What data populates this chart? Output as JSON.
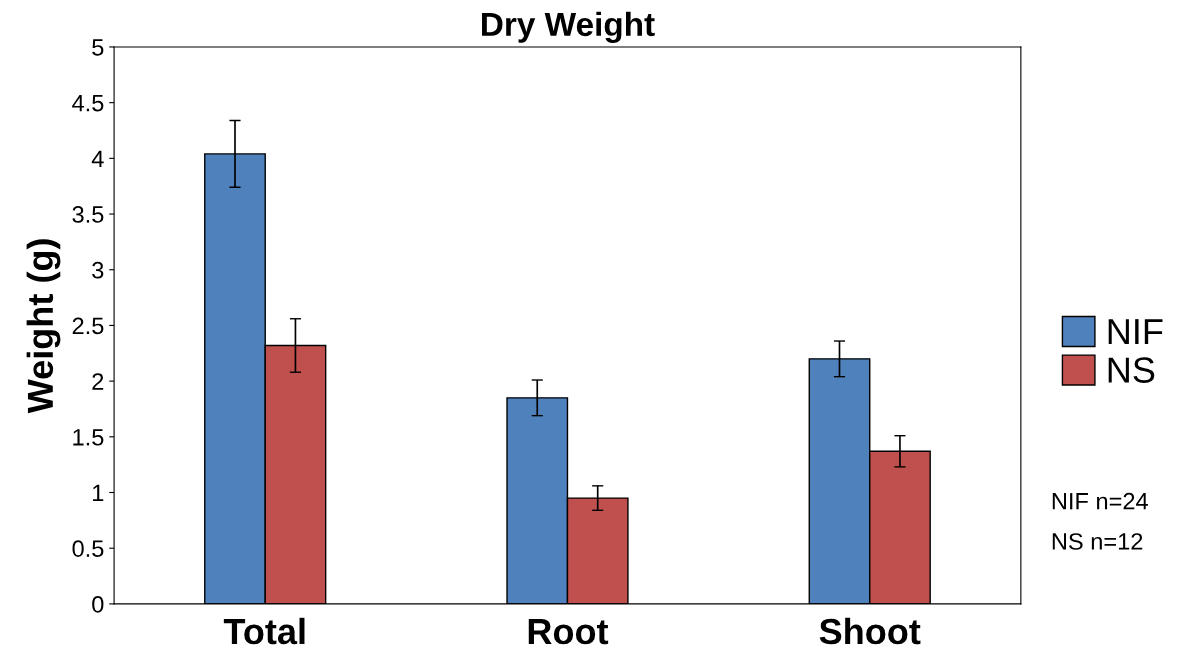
{
  "chart_data": {
    "type": "bar",
    "title": "Dry Weight",
    "ylabel": "Weight (g)",
    "categories": [
      "Total",
      "Root",
      "Shoot"
    ],
    "series": [
      {
        "name": "NIF",
        "color": "#4f81bd",
        "values": [
          4.04,
          1.85,
          2.2
        ],
        "errors": [
          0.3,
          0.16,
          0.16
        ]
      },
      {
        "name": "NS",
        "color": "#c0504d",
        "values": [
          2.32,
          0.95,
          1.37
        ],
        "errors": [
          0.24,
          0.11,
          0.14
        ]
      }
    ],
    "ylim": [
      0,
      5
    ],
    "yticks": [
      0,
      0.5,
      1,
      1.5,
      2,
      2.5,
      3,
      3.5,
      4,
      4.5,
      5
    ],
    "grid": false,
    "legend": "right",
    "annotations": [
      "NIF n=24",
      "NS n=12"
    ]
  }
}
